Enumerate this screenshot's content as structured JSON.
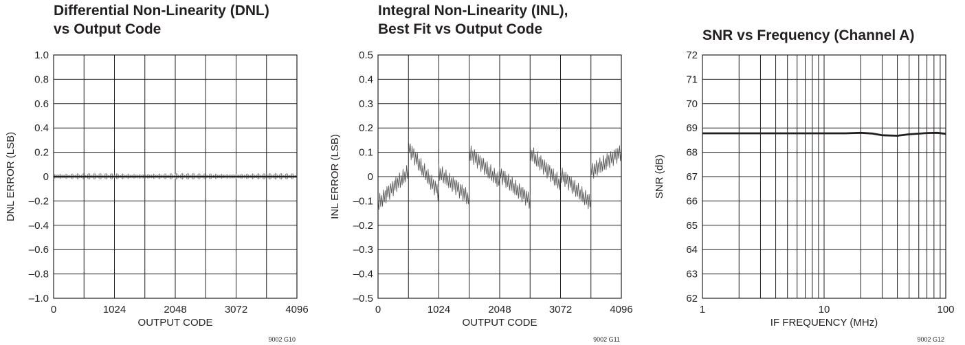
{
  "chart_data": [
    {
      "type": "line",
      "title_lines": [
        "Differential Non-Linearity (DNL)",
        "vs Output Code"
      ],
      "xlabel": "OUTPUT CODE",
      "ylabel": "DNL ERROR (LSB)",
      "xlim": [
        0,
        4096
      ],
      "ylim": [
        -1.0,
        1.0
      ],
      "x_ticks": [
        0,
        1024,
        2048,
        3072,
        4096
      ],
      "y_ticks": [
        -1.0,
        -0.8,
        -0.6,
        -0.4,
        -0.2,
        0,
        0.2,
        0.4,
        0.6,
        0.8,
        1.0
      ],
      "y_tick_labels": [
        "–1.0",
        "–0.8",
        "–0.6",
        "–0.4",
        "–0.2",
        "0",
        "0.2",
        "0.4",
        "0.6",
        "0.8",
        "1.0"
      ],
      "x_grid_divisions": 8,
      "grid": true,
      "figure_id": "9002 G10",
      "series": [
        {
          "x": [
            0,
            256,
            512,
            768,
            1024,
            1280,
            1536,
            1792,
            2048,
            2304,
            2560,
            2816,
            3072,
            3328,
            3584,
            3840,
            4096
          ],
          "y": [
            0,
            0,
            0,
            0,
            0,
            0,
            0,
            0,
            0,
            0,
            0,
            0,
            0,
            0,
            0,
            0,
            0
          ],
          "spread": 0.03
        }
      ]
    },
    {
      "type": "line",
      "title_lines": [
        "Integral Non-Linearity (INL),",
        "Best Fit vs Output Code"
      ],
      "xlabel": "OUTPUT CODE",
      "ylabel": "INL ERROR (LSB)",
      "xlim": [
        0,
        4096
      ],
      "ylim": [
        -0.5,
        0.5
      ],
      "x_ticks": [
        0,
        1024,
        2048,
        3072,
        4096
      ],
      "y_ticks": [
        -0.5,
        -0.4,
        -0.3,
        -0.2,
        -0.1,
        0,
        0.1,
        0.2,
        0.3,
        0.4,
        0.5
      ],
      "y_tick_labels": [
        "–0.5",
        "–0.4",
        "–0.3",
        "–0.2",
        "–0.1",
        "0",
        "0.1",
        "0.2",
        "0.3",
        "0.4",
        "0.5"
      ],
      "x_grid_divisions": 8,
      "grid": true,
      "figure_id": "9002 G11",
      "series": [
        {
          "segments": [
            {
              "x": [
                0,
                512
              ],
              "y": [
                -0.11,
                0.02
              ]
            },
            {
              "x": [
                512,
                1024
              ],
              "y": [
                0.12,
                -0.07
              ]
            },
            {
              "x": [
                1024,
                1536
              ],
              "y": [
                0.02,
                -0.09
              ]
            },
            {
              "x": [
                1536,
                2048
              ],
              "y": [
                0.1,
                -0.02
              ]
            },
            {
              "x": [
                2048,
                2560
              ],
              "y": [
                0.01,
                -0.1
              ]
            },
            {
              "x": [
                2560,
                3072
              ],
              "y": [
                0.1,
                -0.03
              ]
            },
            {
              "x": [
                3072,
                3584
              ],
              "y": [
                0.01,
                -0.11
              ]
            },
            {
              "x": [
                3584,
                4096
              ],
              "y": [
                0.02,
                0.1
              ]
            }
          ],
          "spread": 0.035
        }
      ]
    },
    {
      "type": "line",
      "title_lines": [
        "SNR vs Frequency (Channel A)"
      ],
      "xlabel": "IF FREQUENCY (MHz)",
      "ylabel": "SNR (dB)",
      "x_scale": "log",
      "xlim": [
        1,
        100
      ],
      "ylim": [
        62,
        72
      ],
      "x_ticks": [
        1,
        10,
        100
      ],
      "x_tick_labels": [
        "1",
        "10",
        "100"
      ],
      "y_ticks": [
        62,
        63,
        64,
        65,
        66,
        67,
        68,
        69,
        70,
        71,
        72
      ],
      "y_tick_labels": [
        "62",
        "63",
        "64",
        "65",
        "66",
        "67",
        "68",
        "69",
        "70",
        "71",
        "72"
      ],
      "grid": true,
      "figure_id": "9002 G12",
      "series": [
        {
          "x": [
            1,
            2,
            5,
            10,
            15,
            20,
            25,
            30,
            40,
            50,
            70,
            85,
            100
          ],
          "y": [
            68.78,
            68.78,
            68.78,
            68.78,
            68.78,
            68.8,
            68.77,
            68.7,
            68.68,
            68.74,
            68.79,
            68.8,
            68.76
          ]
        }
      ]
    }
  ]
}
